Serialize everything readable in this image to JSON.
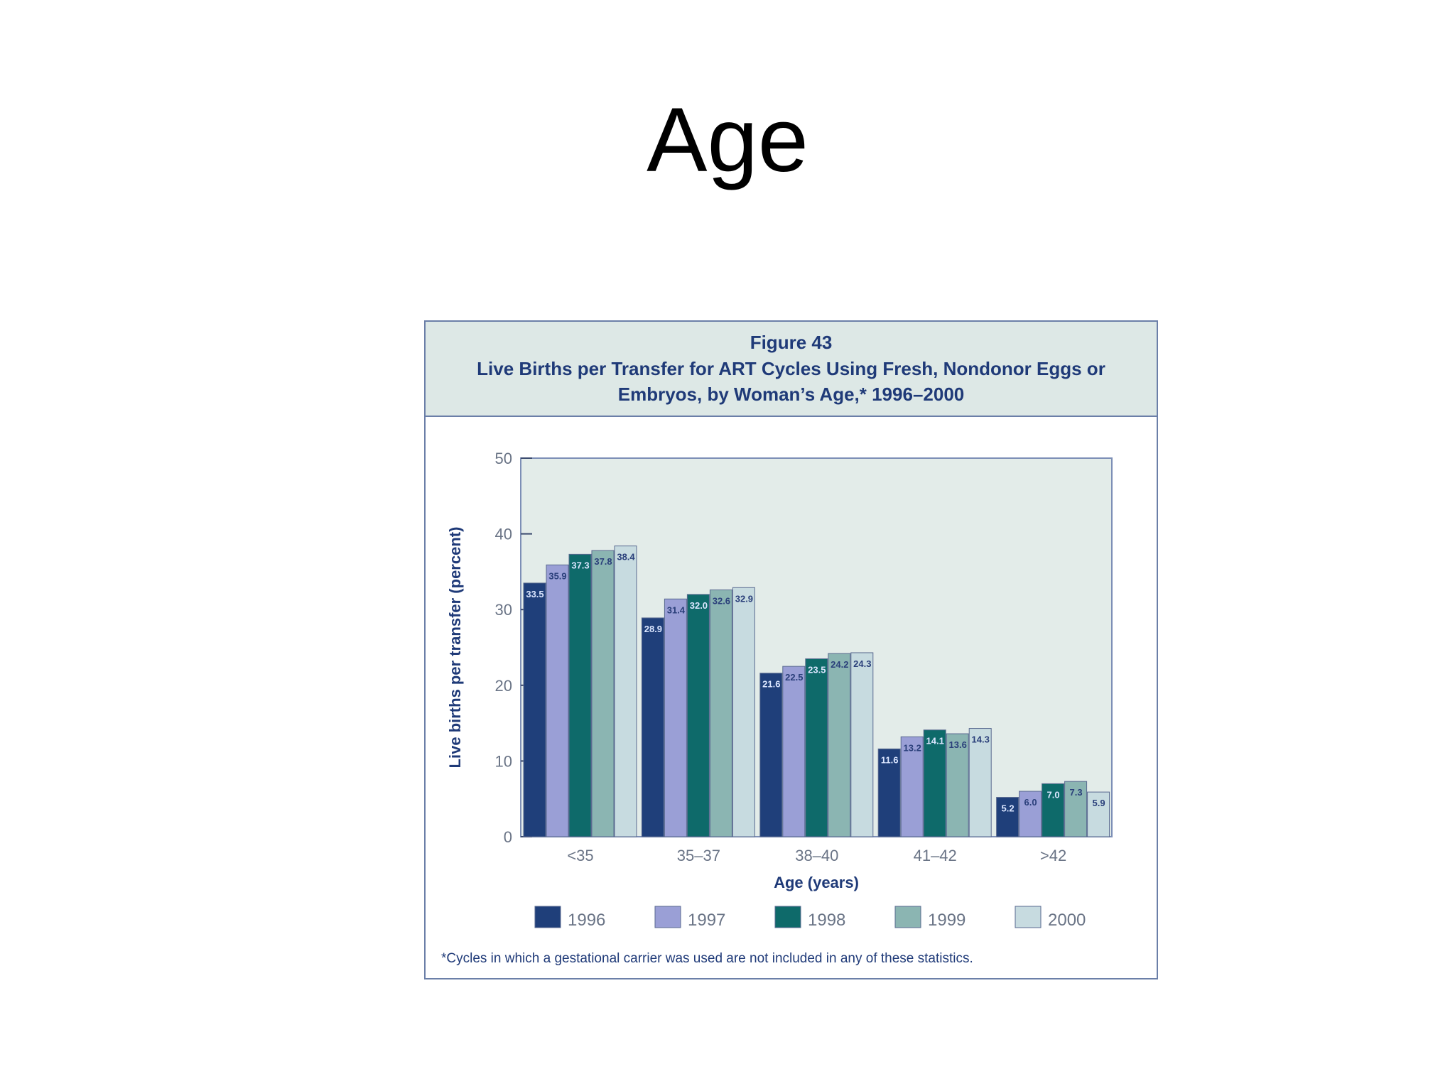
{
  "slide": {
    "title": "Age"
  },
  "figure": {
    "number": "Figure 43",
    "title": "Live Births per Transfer for ART Cycles Using Fresh, Nondonor Eggs or Embryos, by Woman’s Age,* 1996–2000",
    "footnote": "*Cycles in which a gestational carrier was used are not included in any of these statistics."
  },
  "colors": {
    "1996": "#1f3f7a",
    "1997": "#9a9fd6",
    "1998": "#0e6a6a",
    "1999": "#8bb5b2",
    "2000": "#c7dbe0",
    "plot_background": "#e3ece9",
    "axis_text": "#1f3a78",
    "tick_text": "#6a7486"
  },
  "chart_data": {
    "type": "bar",
    "xlabel": "Age (years)",
    "ylabel": "Live births per transfer (percent)",
    "categories": [
      "<35",
      "35–37",
      "38–40",
      "41–42",
      ">42"
    ],
    "ylim": [
      0,
      50
    ],
    "yticks": [
      "0",
      "10",
      "20",
      "30",
      "40",
      "50"
    ],
    "legend_position": "bottom",
    "series": [
      {
        "name": "1996",
        "values": [
          33.5,
          28.9,
          21.6,
          11.6,
          5.2
        ],
        "labels": [
          "33.5",
          "28.9",
          "21.6",
          "11.6",
          "5.2"
        ]
      },
      {
        "name": "1997",
        "values": [
          35.9,
          31.4,
          22.5,
          13.2,
          6.0
        ],
        "labels": [
          "35.9",
          "31.4",
          "22.5",
          "13.2",
          "6.0"
        ]
      },
      {
        "name": "1998",
        "values": [
          37.3,
          32.0,
          23.5,
          14.1,
          7.0
        ],
        "labels": [
          "37.3",
          "32.0",
          "23.5",
          "14.1",
          "7.0"
        ]
      },
      {
        "name": "1999",
        "values": [
          37.8,
          32.6,
          24.2,
          13.6,
          7.3
        ],
        "labels": [
          "37.8",
          "32.6",
          "24.2",
          "13.6",
          "7.3"
        ]
      },
      {
        "name": "2000",
        "values": [
          38.4,
          32.9,
          24.3,
          14.3,
          5.9
        ],
        "labels": [
          "38.4",
          "32.9",
          "24.3",
          "14.3",
          "5.9"
        ]
      }
    ]
  }
}
